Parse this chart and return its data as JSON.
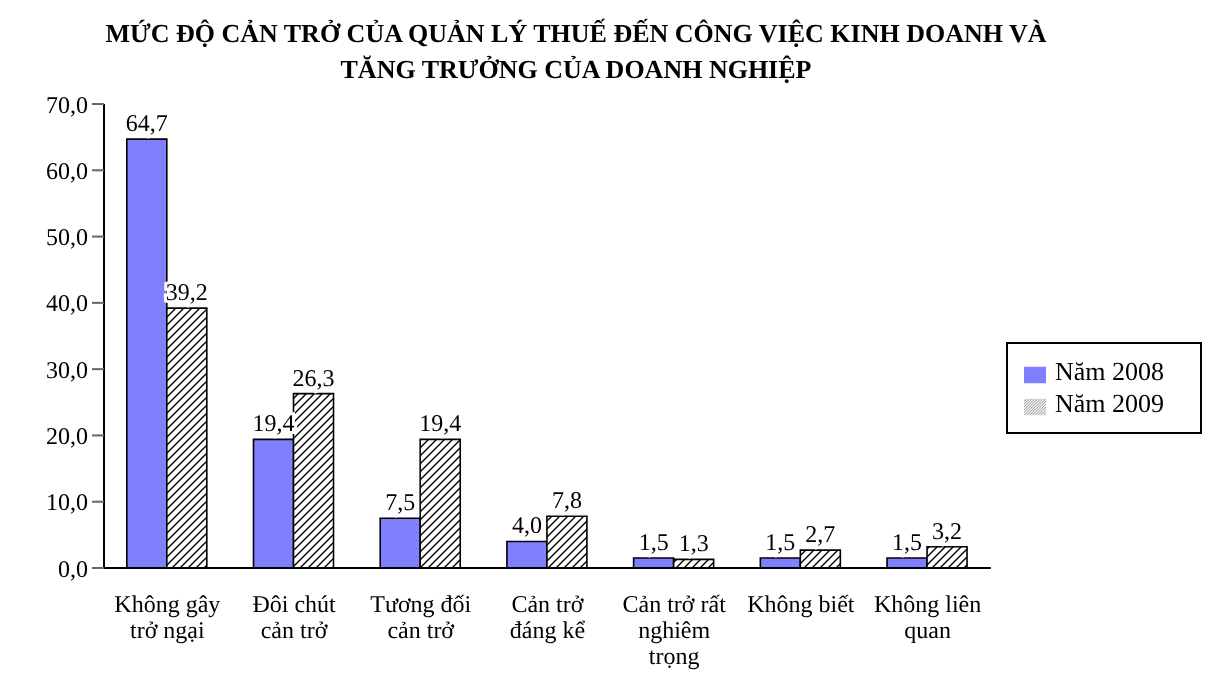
{
  "chart_data": {
    "type": "bar",
    "title": "MỨC ĐỘ CẢN TRỞ CỦA QUẢN LÝ THUẾ ĐẾN CÔNG VIỆC KINH DOANH VÀ TĂNG TRƯỞNG CỦA DOANH NGHIỆP",
    "categories": [
      "Không gây trở ngại",
      "Đôi chút cản trở",
      "Tương đối cản trở",
      "Cản trở đáng kể",
      "Cản trở rất nghiêm trọng",
      "Không biết",
      "Không liên quan"
    ],
    "series": [
      {
        "name": "Năm 2008",
        "color": "#8080ff",
        "values": [
          64.7,
          19.4,
          7.5,
          4.0,
          1.5,
          1.5,
          1.5
        ],
        "value_labels": [
          "64,7",
          "19,4",
          "7,5",
          "4,0",
          "1,5",
          "1,5",
          "1,5"
        ]
      },
      {
        "name": "Năm 2009",
        "color": "#000000",
        "values": [
          39.2,
          26.3,
          19.4,
          7.8,
          1.3,
          2.7,
          3.2
        ],
        "value_labels": [
          "39,2",
          "26,3",
          "19,4",
          "7,8",
          "1,3",
          "2,7",
          "3,2"
        ]
      }
    ],
    "ylim": [
      0,
      70
    ],
    "yticks": [
      {
        "value": 0,
        "label": "0,0"
      },
      {
        "value": 10,
        "label": "10,0"
      },
      {
        "value": 20,
        "label": "20,0"
      },
      {
        "value": 30,
        "label": "30,0"
      },
      {
        "value": 40,
        "label": "40,0"
      },
      {
        "value": 50,
        "label": "50,0"
      },
      {
        "value": 60,
        "label": "60,0"
      },
      {
        "value": 70,
        "label": "70,0"
      }
    ],
    "legend": "right"
  }
}
